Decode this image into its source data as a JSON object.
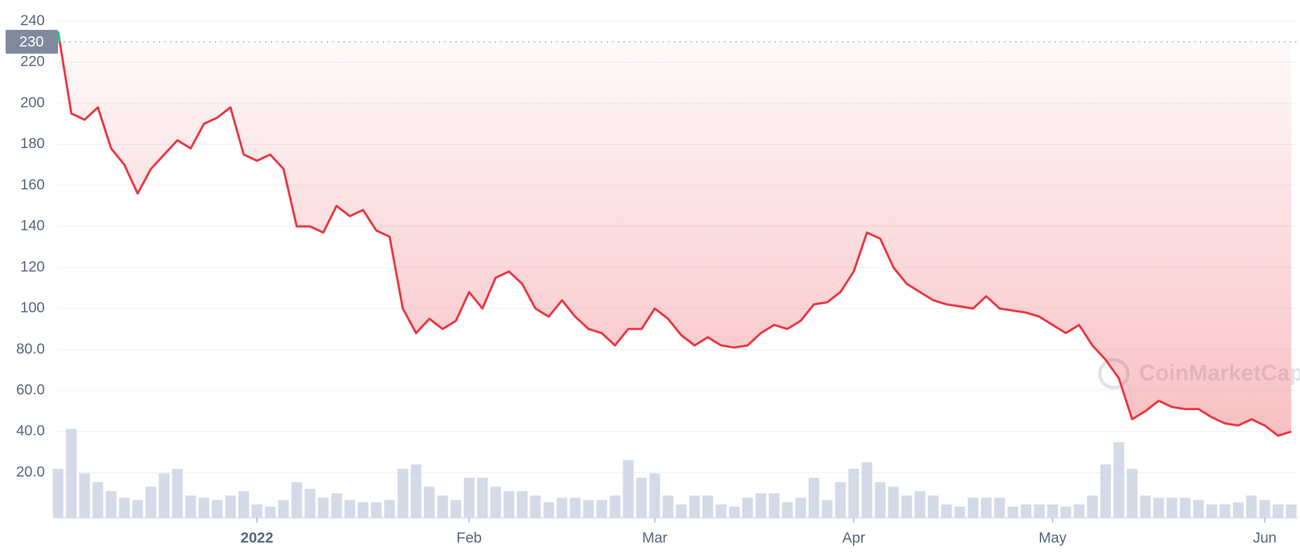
{
  "chart_data": {
    "type": "line",
    "categories": [
      "",
      null,
      null,
      null,
      null,
      null,
      null,
      null,
      null,
      null,
      null,
      null,
      null,
      null,
      null,
      "2022",
      null,
      null,
      null,
      null,
      null,
      null,
      null,
      null,
      null,
      null,
      null,
      null,
      null,
      null,
      null,
      "Feb",
      null,
      null,
      null,
      null,
      null,
      null,
      null,
      null,
      null,
      null,
      null,
      null,
      null,
      "Mar",
      null,
      null,
      null,
      null,
      null,
      null,
      null,
      null,
      null,
      null,
      null,
      null,
      null,
      null,
      "Apr",
      null,
      null,
      null,
      null,
      null,
      null,
      null,
      null,
      null,
      null,
      null,
      null,
      null,
      null,
      "May",
      null,
      null,
      null,
      null,
      null,
      null,
      null,
      null,
      null,
      null,
      null,
      null,
      null,
      null,
      null,
      "Jun",
      null,
      null
    ],
    "values": [
      235,
      195,
      192,
      198,
      178,
      170,
      156,
      168,
      175,
      182,
      178,
      190,
      193,
      198,
      175,
      172,
      175,
      168,
      140,
      140,
      137,
      150,
      145,
      148,
      138,
      135,
      100,
      88,
      95,
      90,
      94,
      108,
      100,
      115,
      118,
      112,
      100,
      96,
      104,
      96,
      90,
      88,
      82,
      90,
      90,
      100,
      95,
      87,
      82,
      86,
      82,
      81,
      82,
      88,
      92,
      90,
      94,
      102,
      103,
      108,
      118,
      137,
      134,
      120,
      112,
      108,
      104,
      102,
      101,
      100,
      106,
      100,
      99,
      98,
      96,
      92,
      88,
      92,
      82,
      75,
      66,
      46,
      50,
      55,
      52,
      51,
      51,
      47,
      44,
      43,
      46,
      43,
      38,
      40
    ],
    "volume": [
      22,
      40,
      20,
      16,
      12,
      9,
      8,
      14,
      20,
      22,
      10,
      9,
      8,
      10,
      12,
      6,
      5,
      8,
      16,
      13,
      9,
      11,
      8,
      7,
      7,
      8,
      22,
      24,
      14,
      10,
      8,
      18,
      18,
      14,
      12,
      12,
      10,
      7,
      9,
      9,
      8,
      8,
      10,
      26,
      18,
      20,
      10,
      6,
      10,
      10,
      6,
      5,
      9,
      11,
      11,
      7,
      9,
      18,
      8,
      16,
      22,
      25,
      16,
      14,
      10,
      12,
      10,
      6,
      5,
      9,
      9,
      9,
      5,
      6,
      6,
      6,
      5,
      6,
      10,
      24,
      34,
      22,
      10,
      9,
      9,
      9,
      8,
      6,
      6,
      7,
      10,
      8,
      6,
      6
    ],
    "color": "#ea3943",
    "color_up": "#16c784",
    "volume_color": "#c6cde0",
    "reference_value": 230,
    "ylim": [
      -2,
      250
    ],
    "y2lim": [
      0,
      100
    ],
    "yticks": [
      {
        "value": 20,
        "label": "20.0"
      },
      {
        "value": 40,
        "label": "40.0"
      },
      {
        "value": 60,
        "label": "60.0"
      },
      {
        "value": 80,
        "label": "80.0"
      },
      100,
      120,
      140,
      160,
      180,
      200,
      220,
      240
    ],
    "grid": true,
    "watermark": "CoinMarketCap"
  }
}
